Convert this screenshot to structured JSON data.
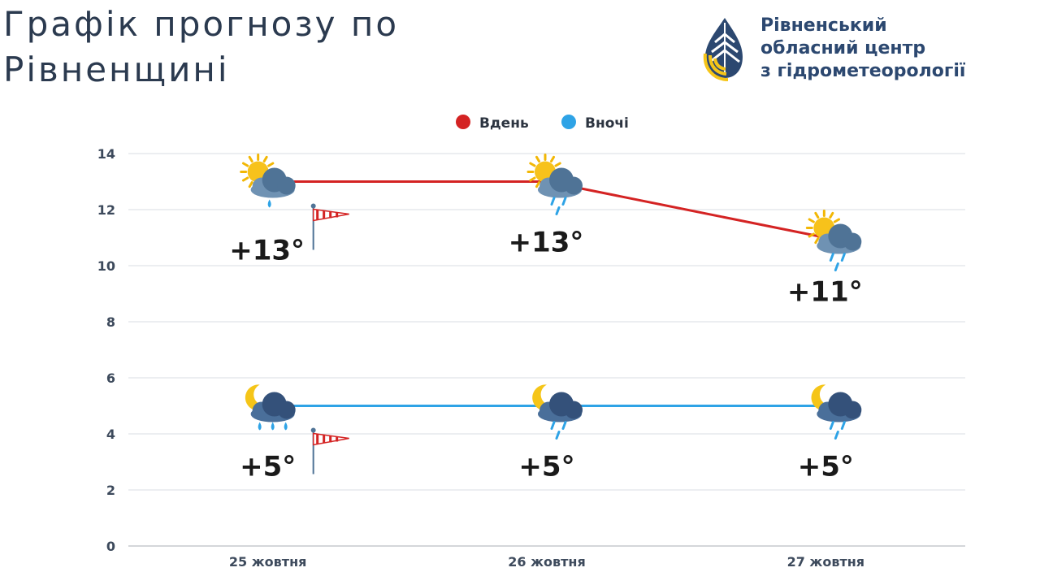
{
  "header": {
    "title": "Графік прогнозу по Рівненщині",
    "org_line1": "Рівненський",
    "org_line2": "обласний центр",
    "org_line3": "з гідрометеорології"
  },
  "logo": {
    "icon": "hydromet-drop-logo-icon",
    "colors": [
      "#2c4870",
      "#f5c518"
    ]
  },
  "chart_data": {
    "type": "line",
    "title": "",
    "xlabel": "",
    "ylabel": "",
    "categories": [
      "25 жовтня",
      "26 жовтня",
      "27 жовтня"
    ],
    "ylim": [
      0,
      14
    ],
    "yticks": [
      0,
      2,
      4,
      6,
      8,
      10,
      12,
      14
    ],
    "grid": true,
    "legend_position": "top-center",
    "series": [
      {
        "name": "Вдень",
        "color": "#d42323",
        "values": [
          13,
          13,
          11
        ],
        "labels": [
          "+13°",
          "+13°",
          "+11°"
        ],
        "weather_icons": [
          "sun-cloud-light-rain-icon",
          "sun-cloud-rain-icon",
          "sun-cloud-rain-icon"
        ]
      },
      {
        "name": "Вночі",
        "color": "#2ea3e6",
        "values": [
          5,
          5,
          5
        ],
        "labels": [
          "+5°",
          "+5°",
          "+5°"
        ],
        "weather_icons": [
          "moon-cloud-rain-icon",
          "moon-cloud-rain-icon",
          "moon-cloud-rain-icon"
        ]
      }
    ],
    "annotations": [
      {
        "category": "25 жовтня",
        "series": "Вдень",
        "icon": "wind-sock-icon"
      },
      {
        "category": "25 жовтня",
        "series": "Вночі",
        "icon": "wind-sock-icon"
      }
    ]
  }
}
